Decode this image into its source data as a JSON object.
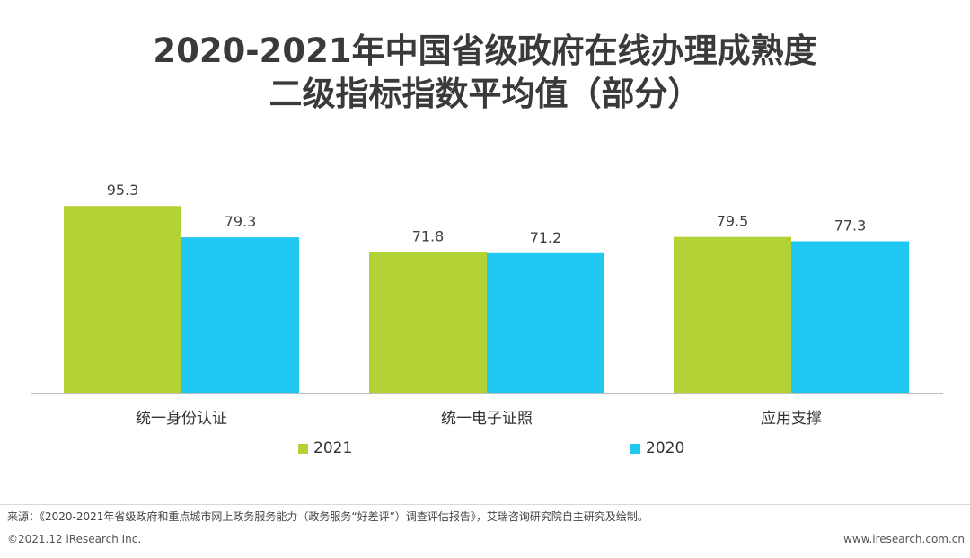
{
  "title_line1": "2020-2021年中国省级政府在线办理成熟度",
  "title_line2": "二级指标指数平均值（部分）",
  "chart_data": {
    "type": "bar",
    "title": "2020-2021年中国省级政府在线办理成熟度二级指标指数平均值（部分）",
    "categories": [
      "统一身份认证",
      "统一电子证照",
      "应用支撑"
    ],
    "series": [
      {
        "name": "2021",
        "values": [
          95.3,
          71.8,
          79.5
        ],
        "color": "#b2d235"
      },
      {
        "name": "2020",
        "values": [
          79.3,
          71.2,
          77.3
        ],
        "color": "#1ec8f0"
      }
    ],
    "ylim": [
      0,
      100
    ],
    "xlabel": "",
    "ylabel": "",
    "legend": "bottom",
    "grid": false
  },
  "footer": {
    "source": "来源：《2020-2021年省级政府和重点城市网上政务服务能力（政务服务“好差评”）调查评估报告》，艾瑞咨询研究院自主研究及绘制。",
    "copyright": "©2021.12 iResearch Inc.",
    "website": "www.iresearch.com.cn"
  }
}
